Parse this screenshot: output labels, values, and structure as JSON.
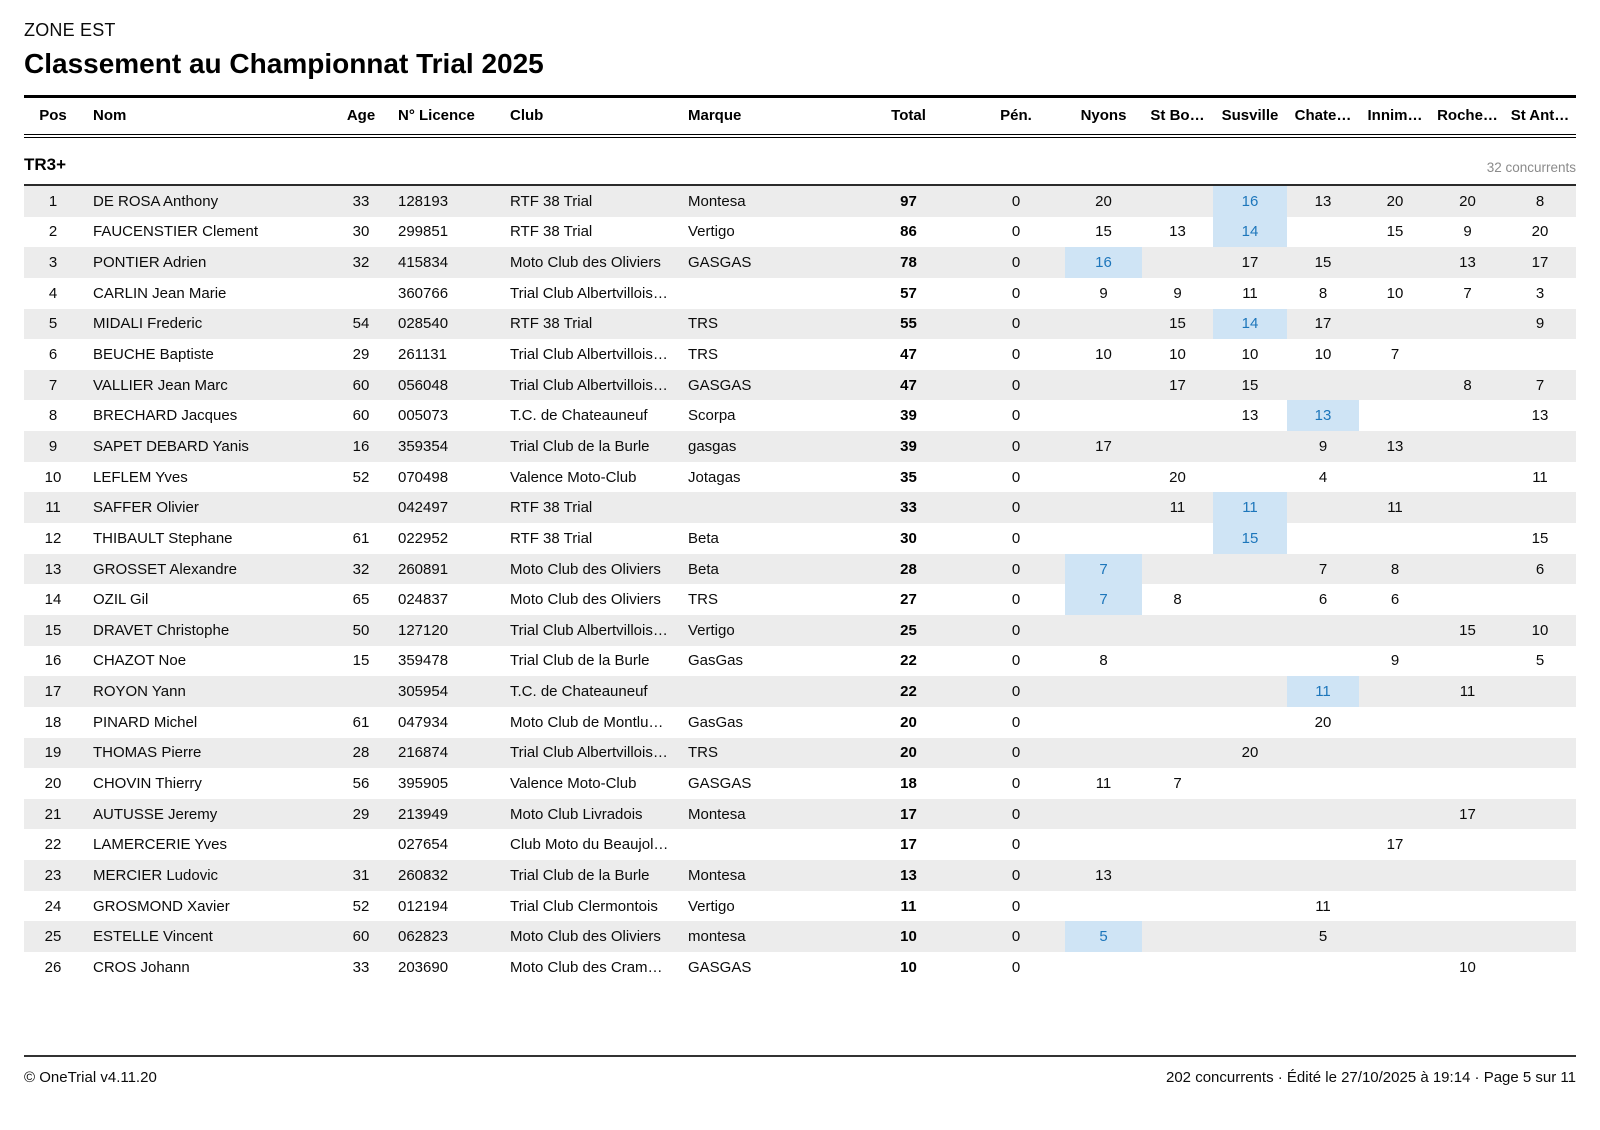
{
  "header": {
    "zone": "ZONE EST",
    "title": "Classement au Championnat Trial 2025"
  },
  "table": {
    "columns": [
      {
        "key": "pos",
        "label": "Pos",
        "align": "center"
      },
      {
        "key": "nom",
        "label": "Nom",
        "align": "left"
      },
      {
        "key": "age",
        "label": "Age",
        "align": "center"
      },
      {
        "key": "licence",
        "label": "N° Licence",
        "align": "left"
      },
      {
        "key": "club",
        "label": "Club",
        "align": "left"
      },
      {
        "key": "marque",
        "label": "Marque",
        "align": "left"
      },
      {
        "key": "total",
        "label": "Total",
        "align": "center"
      },
      {
        "key": "pen",
        "label": "Pén.",
        "align": "center"
      },
      {
        "key": "nyons",
        "label": "Nyons",
        "align": "center"
      },
      {
        "key": "stbo",
        "label": "St Bo…",
        "align": "center"
      },
      {
        "key": "susville",
        "label": "Susville",
        "align": "center"
      },
      {
        "key": "chate",
        "label": "Chate…",
        "align": "center"
      },
      {
        "key": "innim",
        "label": "Innim…",
        "align": "center"
      },
      {
        "key": "roche",
        "label": "Roche…",
        "align": "center"
      },
      {
        "key": "stant",
        "label": "St Ant…",
        "align": "center"
      }
    ],
    "category": {
      "label": "TR3+",
      "count_label": "32 concurrents"
    },
    "rows": [
      {
        "pos": "1",
        "nom": "DE ROSA Anthony",
        "age": "33",
        "licence": "128193",
        "club": "RTF 38 Trial",
        "marque": "Montesa",
        "total": "97",
        "pen": "0",
        "nyons": "20",
        "stbo": "",
        "susville": "16",
        "chate": "13",
        "innim": "20",
        "roche": "20",
        "stant": "8",
        "highlight": [
          "susville"
        ]
      },
      {
        "pos": "2",
        "nom": "FAUCENSTIER Clement",
        "age": "30",
        "licence": "299851",
        "club": "RTF 38 Trial",
        "marque": "Vertigo",
        "total": "86",
        "pen": "0",
        "nyons": "15",
        "stbo": "13",
        "susville": "14",
        "chate": "",
        "innim": "15",
        "roche": "9",
        "stant": "20",
        "highlight": [
          "susville"
        ]
      },
      {
        "pos": "3",
        "nom": "PONTIER Adrien",
        "age": "32",
        "licence": "415834",
        "club": "Moto Club des Oliviers",
        "marque": "GASGAS",
        "total": "78",
        "pen": "0",
        "nyons": "16",
        "stbo": "",
        "susville": "17",
        "chate": "15",
        "innim": "",
        "roche": "13",
        "stant": "17",
        "highlight": [
          "nyons"
        ]
      },
      {
        "pos": "4",
        "nom": "CARLIN Jean Marie",
        "age": "",
        "licence": "360766",
        "club": "Trial Club Albertvillois…",
        "marque": "",
        "total": "57",
        "pen": "0",
        "nyons": "9",
        "stbo": "9",
        "susville": "11",
        "chate": "8",
        "innim": "10",
        "roche": "7",
        "stant": "3",
        "highlight": []
      },
      {
        "pos": "5",
        "nom": "MIDALI Frederic",
        "age": "54",
        "licence": "028540",
        "club": "RTF 38 Trial",
        "marque": "TRS",
        "total": "55",
        "pen": "0",
        "nyons": "",
        "stbo": "15",
        "susville": "14",
        "chate": "17",
        "innim": "",
        "roche": "",
        "stant": "9",
        "highlight": [
          "susville"
        ]
      },
      {
        "pos": "6",
        "nom": "BEUCHE Baptiste",
        "age": "29",
        "licence": "261131",
        "club": "Trial Club Albertvillois…",
        "marque": "TRS",
        "total": "47",
        "pen": "0",
        "nyons": "10",
        "stbo": "10",
        "susville": "10",
        "chate": "10",
        "innim": "7",
        "roche": "",
        "stant": "",
        "highlight": []
      },
      {
        "pos": "7",
        "nom": "VALLIER Jean Marc",
        "age": "60",
        "licence": "056048",
        "club": "Trial Club Albertvillois…",
        "marque": "GASGAS",
        "total": "47",
        "pen": "0",
        "nyons": "",
        "stbo": "17",
        "susville": "15",
        "chate": "",
        "innim": "",
        "roche": "8",
        "stant": "7",
        "highlight": []
      },
      {
        "pos": "8",
        "nom": "BRECHARD Jacques",
        "age": "60",
        "licence": "005073",
        "club": "T.C. de Chateauneuf",
        "marque": "Scorpa",
        "total": "39",
        "pen": "0",
        "nyons": "",
        "stbo": "",
        "susville": "13",
        "chate": "13",
        "innim": "",
        "roche": "",
        "stant": "13",
        "highlight": [
          "chate"
        ]
      },
      {
        "pos": "9",
        "nom": "SAPET DEBARD Yanis",
        "age": "16",
        "licence": "359354",
        "club": "Trial Club de la Burle",
        "marque": "gasgas",
        "total": "39",
        "pen": "0",
        "nyons": "17",
        "stbo": "",
        "susville": "",
        "chate": "9",
        "innim": "13",
        "roche": "",
        "stant": "",
        "highlight": []
      },
      {
        "pos": "10",
        "nom": "LEFLEM Yves",
        "age": "52",
        "licence": "070498",
        "club": "Valence Moto-Club",
        "marque": "Jotagas",
        "total": "35",
        "pen": "0",
        "nyons": "",
        "stbo": "20",
        "susville": "",
        "chate": "4",
        "innim": "",
        "roche": "",
        "stant": "11",
        "highlight": []
      },
      {
        "pos": "11",
        "nom": "SAFFER Olivier",
        "age": "",
        "licence": "042497",
        "club": "RTF 38 Trial",
        "marque": "",
        "total": "33",
        "pen": "0",
        "nyons": "",
        "stbo": "11",
        "susville": "11",
        "chate": "",
        "innim": "11",
        "roche": "",
        "stant": "",
        "highlight": [
          "susville"
        ]
      },
      {
        "pos": "12",
        "nom": "THIBAULT Stephane",
        "age": "61",
        "licence": "022952",
        "club": "RTF 38 Trial",
        "marque": "Beta",
        "total": "30",
        "pen": "0",
        "nyons": "",
        "stbo": "",
        "susville": "15",
        "chate": "",
        "innim": "",
        "roche": "",
        "stant": "15",
        "highlight": [
          "susville"
        ]
      },
      {
        "pos": "13",
        "nom": "GROSSET Alexandre",
        "age": "32",
        "licence": "260891",
        "club": "Moto Club des Oliviers",
        "marque": "Beta",
        "total": "28",
        "pen": "0",
        "nyons": "7",
        "stbo": "",
        "susville": "",
        "chate": "7",
        "innim": "8",
        "roche": "",
        "stant": "6",
        "highlight": [
          "nyons"
        ]
      },
      {
        "pos": "14",
        "nom": "OZIL Gil",
        "age": "65",
        "licence": "024837",
        "club": "Moto Club des Oliviers",
        "marque": "TRS",
        "total": "27",
        "pen": "0",
        "nyons": "7",
        "stbo": "8",
        "susville": "",
        "chate": "6",
        "innim": "6",
        "roche": "",
        "stant": "",
        "highlight": [
          "nyons"
        ]
      },
      {
        "pos": "15",
        "nom": "DRAVET Christophe",
        "age": "50",
        "licence": "127120",
        "club": "Trial Club Albertvillois…",
        "marque": "Vertigo",
        "total": "25",
        "pen": "0",
        "nyons": "",
        "stbo": "",
        "susville": "",
        "chate": "",
        "innim": "",
        "roche": "15",
        "stant": "10",
        "highlight": []
      },
      {
        "pos": "16",
        "nom": "CHAZOT Noe",
        "age": "15",
        "licence": "359478",
        "club": "Trial Club de la Burle",
        "marque": "GasGas",
        "total": "22",
        "pen": "0",
        "nyons": "8",
        "stbo": "",
        "susville": "",
        "chate": "",
        "innim": "9",
        "roche": "",
        "stant": "5",
        "highlight": []
      },
      {
        "pos": "17",
        "nom": "ROYON Yann",
        "age": "",
        "licence": "305954",
        "club": "T.C. de Chateauneuf",
        "marque": "",
        "total": "22",
        "pen": "0",
        "nyons": "",
        "stbo": "",
        "susville": "",
        "chate": "11",
        "innim": "",
        "roche": "11",
        "stant": "",
        "highlight": [
          "chate"
        ]
      },
      {
        "pos": "18",
        "nom": "PINARD Michel",
        "age": "61",
        "licence": "047934",
        "club": "Moto Club de Montlu…",
        "marque": "GasGas",
        "total": "20",
        "pen": "0",
        "nyons": "",
        "stbo": "",
        "susville": "",
        "chate": "20",
        "innim": "",
        "roche": "",
        "stant": "",
        "highlight": []
      },
      {
        "pos": "19",
        "nom": "THOMAS Pierre",
        "age": "28",
        "licence": "216874",
        "club": "Trial Club Albertvillois…",
        "marque": "TRS",
        "total": "20",
        "pen": "0",
        "nyons": "",
        "stbo": "",
        "susville": "20",
        "chate": "",
        "innim": "",
        "roche": "",
        "stant": "",
        "highlight": []
      },
      {
        "pos": "20",
        "nom": "CHOVIN Thierry",
        "age": "56",
        "licence": "395905",
        "club": "Valence Moto-Club",
        "marque": "GASGAS",
        "total": "18",
        "pen": "0",
        "nyons": "11",
        "stbo": "7",
        "susville": "",
        "chate": "",
        "innim": "",
        "roche": "",
        "stant": "",
        "highlight": []
      },
      {
        "pos": "21",
        "nom": "AUTUSSE Jeremy",
        "age": "29",
        "licence": "213949",
        "club": "Moto Club Livradois",
        "marque": "Montesa",
        "total": "17",
        "pen": "0",
        "nyons": "",
        "stbo": "",
        "susville": "",
        "chate": "",
        "innim": "",
        "roche": "17",
        "stant": "",
        "highlight": []
      },
      {
        "pos": "22",
        "nom": "LAMERCERIE Yves",
        "age": "",
        "licence": "027654",
        "club": "Club Moto du Beaujol…",
        "marque": "",
        "total": "17",
        "pen": "0",
        "nyons": "",
        "stbo": "",
        "susville": "",
        "chate": "",
        "innim": "17",
        "roche": "",
        "stant": "",
        "highlight": []
      },
      {
        "pos": "23",
        "nom": "MERCIER Ludovic",
        "age": "31",
        "licence": "260832",
        "club": "Trial Club de la Burle",
        "marque": "Montesa",
        "total": "13",
        "pen": "0",
        "nyons": "13",
        "stbo": "",
        "susville": "",
        "chate": "",
        "innim": "",
        "roche": "",
        "stant": "",
        "highlight": []
      },
      {
        "pos": "24",
        "nom": "GROSMOND Xavier",
        "age": "52",
        "licence": "012194",
        "club": "Trial Club Clermontois",
        "marque": "Vertigo",
        "total": "11",
        "pen": "0",
        "nyons": "",
        "stbo": "",
        "susville": "",
        "chate": "11",
        "innim": "",
        "roche": "",
        "stant": "",
        "highlight": []
      },
      {
        "pos": "25",
        "nom": "ESTELLE Vincent",
        "age": "60",
        "licence": "062823",
        "club": "Moto Club des Oliviers",
        "marque": "montesa",
        "total": "10",
        "pen": "0",
        "nyons": "5",
        "stbo": "",
        "susville": "",
        "chate": "5",
        "innim": "",
        "roche": "",
        "stant": "",
        "highlight": [
          "nyons"
        ]
      },
      {
        "pos": "26",
        "nom": "CROS Johann",
        "age": "33",
        "licence": "203690",
        "club": "Moto Club des Cram…",
        "marque": "GASGAS",
        "total": "10",
        "pen": "0",
        "nyons": "",
        "stbo": "",
        "susville": "",
        "chate": "",
        "innim": "",
        "roche": "10",
        "stant": "",
        "highlight": []
      }
    ]
  },
  "footer": {
    "left": "© OneTrial v4.11.20",
    "right": "202 concurrents · Édité le 27/10/2025 à 19:14 · Page 5 sur 11"
  },
  "colors": {
    "row_alt": "#ececec",
    "highlight_bg": "#cfe4f5",
    "highlight_text": "#1d76bb",
    "muted_text": "#8b8b8b"
  }
}
